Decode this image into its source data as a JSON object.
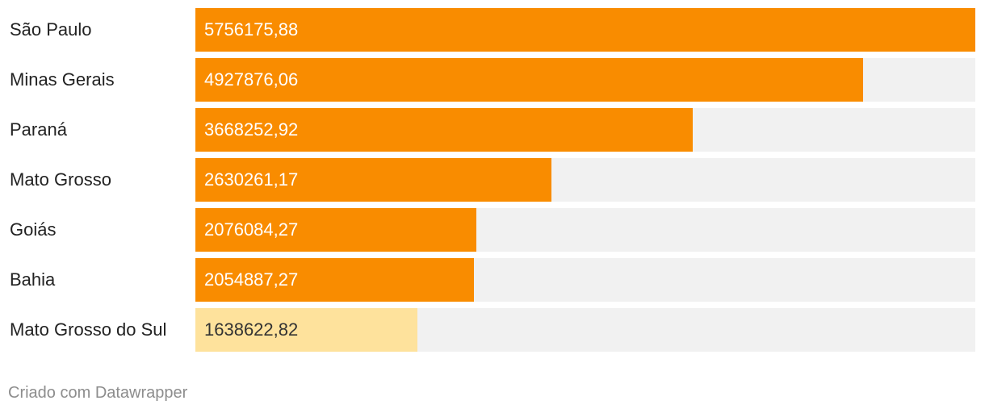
{
  "chart_data": {
    "type": "bar",
    "orientation": "horizontal",
    "categories": [
      "São Paulo",
      "Minas Gerais",
      "Paraná",
      "Mato Grosso",
      "Goiás",
      "Bahia",
      "Mato Grosso do Sul"
    ],
    "values": [
      5756175.88,
      4927876.06,
      3668252.92,
      2630261.17,
      2076084.27,
      2054887.27,
      1638622.82
    ],
    "value_labels": [
      "5756175,88",
      "4927876,06",
      "3668252,92",
      "2630261,17",
      "2076084,27",
      "2054887,27",
      "1638622,82"
    ],
    "highlight": [
      false,
      false,
      false,
      false,
      false,
      false,
      true
    ],
    "xlim": [
      0,
      5756175.88
    ]
  },
  "colors": {
    "bar": "#f98c00",
    "bar_highlight": "#fee29c",
    "track": "#f1f1f1",
    "label_on_bar": "#ffffff",
    "label_on_highlight": "#333333"
  },
  "footer": {
    "credit": "Criado com Datawrapper"
  }
}
